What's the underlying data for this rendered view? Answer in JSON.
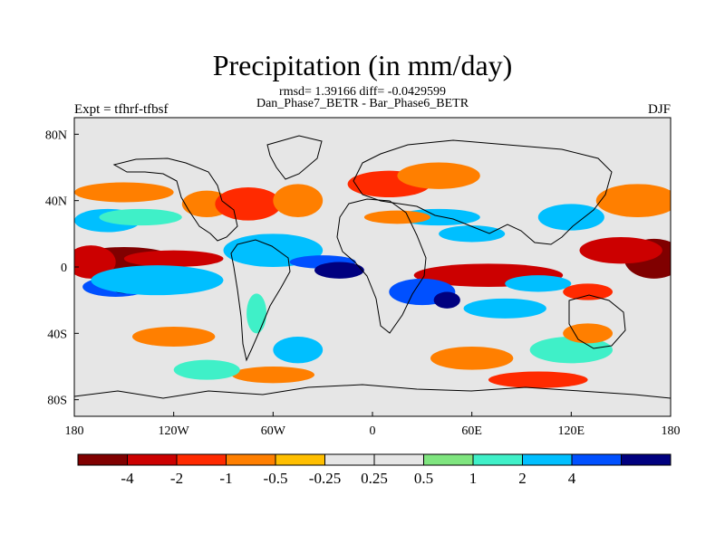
{
  "title": "Precipitation (in mm/day)",
  "stats": "rmsd= 1.39166 diff= -0.0429599",
  "subtitle": "Dan_Phase7_BETR - Bar_Phase6_BETR",
  "left_label": "Expt = tfhrf-tfbsf",
  "right_label": "DJF",
  "map": {
    "lon_ticks": [
      {
        "lon": -180,
        "label": "180"
      },
      {
        "lon": -120,
        "label": "120W"
      },
      {
        "lon": -60,
        "label": "60W"
      },
      {
        "lon": 0,
        "label": "0"
      },
      {
        "lon": 60,
        "label": "60E"
      },
      {
        "lon": 120,
        "label": "120E"
      },
      {
        "lon": 180,
        "label": "180"
      }
    ],
    "lat_ticks": [
      {
        "lat": 80,
        "label": "80N"
      },
      {
        "lat": 40,
        "label": "40N"
      },
      {
        "lat": 0,
        "label": "0"
      },
      {
        "lat": -40,
        "label": "40S"
      },
      {
        "lat": -80,
        "label": "80S"
      }
    ],
    "land_outline_color": "#000000",
    "ocean_fill": "#e6e6e6"
  },
  "colorbar": {
    "colors": [
      "#800000",
      "#cc0000",
      "#ff2a00",
      "#ff7f00",
      "#ffbf00",
      "#e6e6e6",
      "#e6e6e6",
      "#7fe57f",
      "#3ff0c8",
      "#00bfff",
      "#0050ff",
      "#00007f"
    ],
    "labels": [
      "-4",
      "-2",
      "-1",
      "-0.5",
      "-0.25",
      "0.25",
      "0.5",
      "1",
      "2",
      "4"
    ]
  },
  "anomalies": [
    {
      "lon": -150,
      "lat": 5,
      "rx": 30,
      "ry": 7,
      "c": 0
    },
    {
      "lon": -170,
      "lat": 3,
      "rx": 15,
      "ry": 10,
      "c": 1
    },
    {
      "lon": -120,
      "lat": 5,
      "rx": 30,
      "ry": 5,
      "c": 1
    },
    {
      "lon": -155,
      "lat": -12,
      "rx": 20,
      "ry": 6,
      "c": 10
    },
    {
      "lon": -150,
      "lat": -12,
      "rx": 8,
      "ry": 4,
      "c": 11
    },
    {
      "lon": -130,
      "lat": -8,
      "rx": 40,
      "ry": 9,
      "c": 9
    },
    {
      "lon": -160,
      "lat": 28,
      "rx": 20,
      "ry": 7,
      "c": 9
    },
    {
      "lon": -140,
      "lat": 30,
      "rx": 25,
      "ry": 5,
      "c": 8
    },
    {
      "lon": -150,
      "lat": 45,
      "rx": 30,
      "ry": 6,
      "c": 3
    },
    {
      "lon": -100,
      "lat": 38,
      "rx": 15,
      "ry": 8,
      "c": 3
    },
    {
      "lon": -75,
      "lat": 38,
      "rx": 20,
      "ry": 10,
      "c": 2
    },
    {
      "lon": -45,
      "lat": 40,
      "rx": 15,
      "ry": 10,
      "c": 3
    },
    {
      "lon": -60,
      "lat": 10,
      "rx": 30,
      "ry": 10,
      "c": 9
    },
    {
      "lon": -30,
      "lat": 3,
      "rx": 20,
      "ry": 4,
      "c": 10
    },
    {
      "lon": -20,
      "lat": -2,
      "rx": 15,
      "ry": 5,
      "c": 11
    },
    {
      "lon": -70,
      "lat": -28,
      "rx": 6,
      "ry": 12,
      "c": 8
    },
    {
      "lon": -45,
      "lat": -50,
      "rx": 15,
      "ry": 8,
      "c": 9
    },
    {
      "lon": -120,
      "lat": -42,
      "rx": 25,
      "ry": 6,
      "c": 3
    },
    {
      "lon": -60,
      "lat": -65,
      "rx": 25,
      "ry": 5,
      "c": 3
    },
    {
      "lon": -100,
      "lat": -62,
      "rx": 20,
      "ry": 6,
      "c": 8
    },
    {
      "lon": 10,
      "lat": 50,
      "rx": 25,
      "ry": 8,
      "c": 2
    },
    {
      "lon": 40,
      "lat": 55,
      "rx": 25,
      "ry": 8,
      "c": 3
    },
    {
      "lon": 40,
      "lat": 30,
      "rx": 25,
      "ry": 5,
      "c": 9
    },
    {
      "lon": 15,
      "lat": 30,
      "rx": 20,
      "ry": 4,
      "c": 3
    },
    {
      "lon": 60,
      "lat": 20,
      "rx": 20,
      "ry": 5,
      "c": 9
    },
    {
      "lon": 70,
      "lat": -5,
      "rx": 45,
      "ry": 7,
      "c": 1
    },
    {
      "lon": 30,
      "lat": -15,
      "rx": 20,
      "ry": 8,
      "c": 10
    },
    {
      "lon": 45,
      "lat": -20,
      "rx": 8,
      "ry": 5,
      "c": 11
    },
    {
      "lon": 80,
      "lat": -25,
      "rx": 25,
      "ry": 6,
      "c": 9
    },
    {
      "lon": 100,
      "lat": -10,
      "rx": 20,
      "ry": 5,
      "c": 9
    },
    {
      "lon": 120,
      "lat": 30,
      "rx": 20,
      "ry": 8,
      "c": 9
    },
    {
      "lon": 160,
      "lat": 40,
      "rx": 25,
      "ry": 10,
      "c": 3
    },
    {
      "lon": 170,
      "lat": 5,
      "rx": 18,
      "ry": 12,
      "c": 0
    },
    {
      "lon": 150,
      "lat": 10,
      "rx": 25,
      "ry": 8,
      "c": 1
    },
    {
      "lon": 130,
      "lat": -15,
      "rx": 15,
      "ry": 5,
      "c": 2
    },
    {
      "lon": 120,
      "lat": -50,
      "rx": 25,
      "ry": 8,
      "c": 8
    },
    {
      "lon": 60,
      "lat": -55,
      "rx": 25,
      "ry": 7,
      "c": 3
    },
    {
      "lon": 100,
      "lat": -68,
      "rx": 30,
      "ry": 5,
      "c": 2
    },
    {
      "lon": 130,
      "lat": -40,
      "rx": 15,
      "ry": 6,
      "c": 3
    }
  ]
}
